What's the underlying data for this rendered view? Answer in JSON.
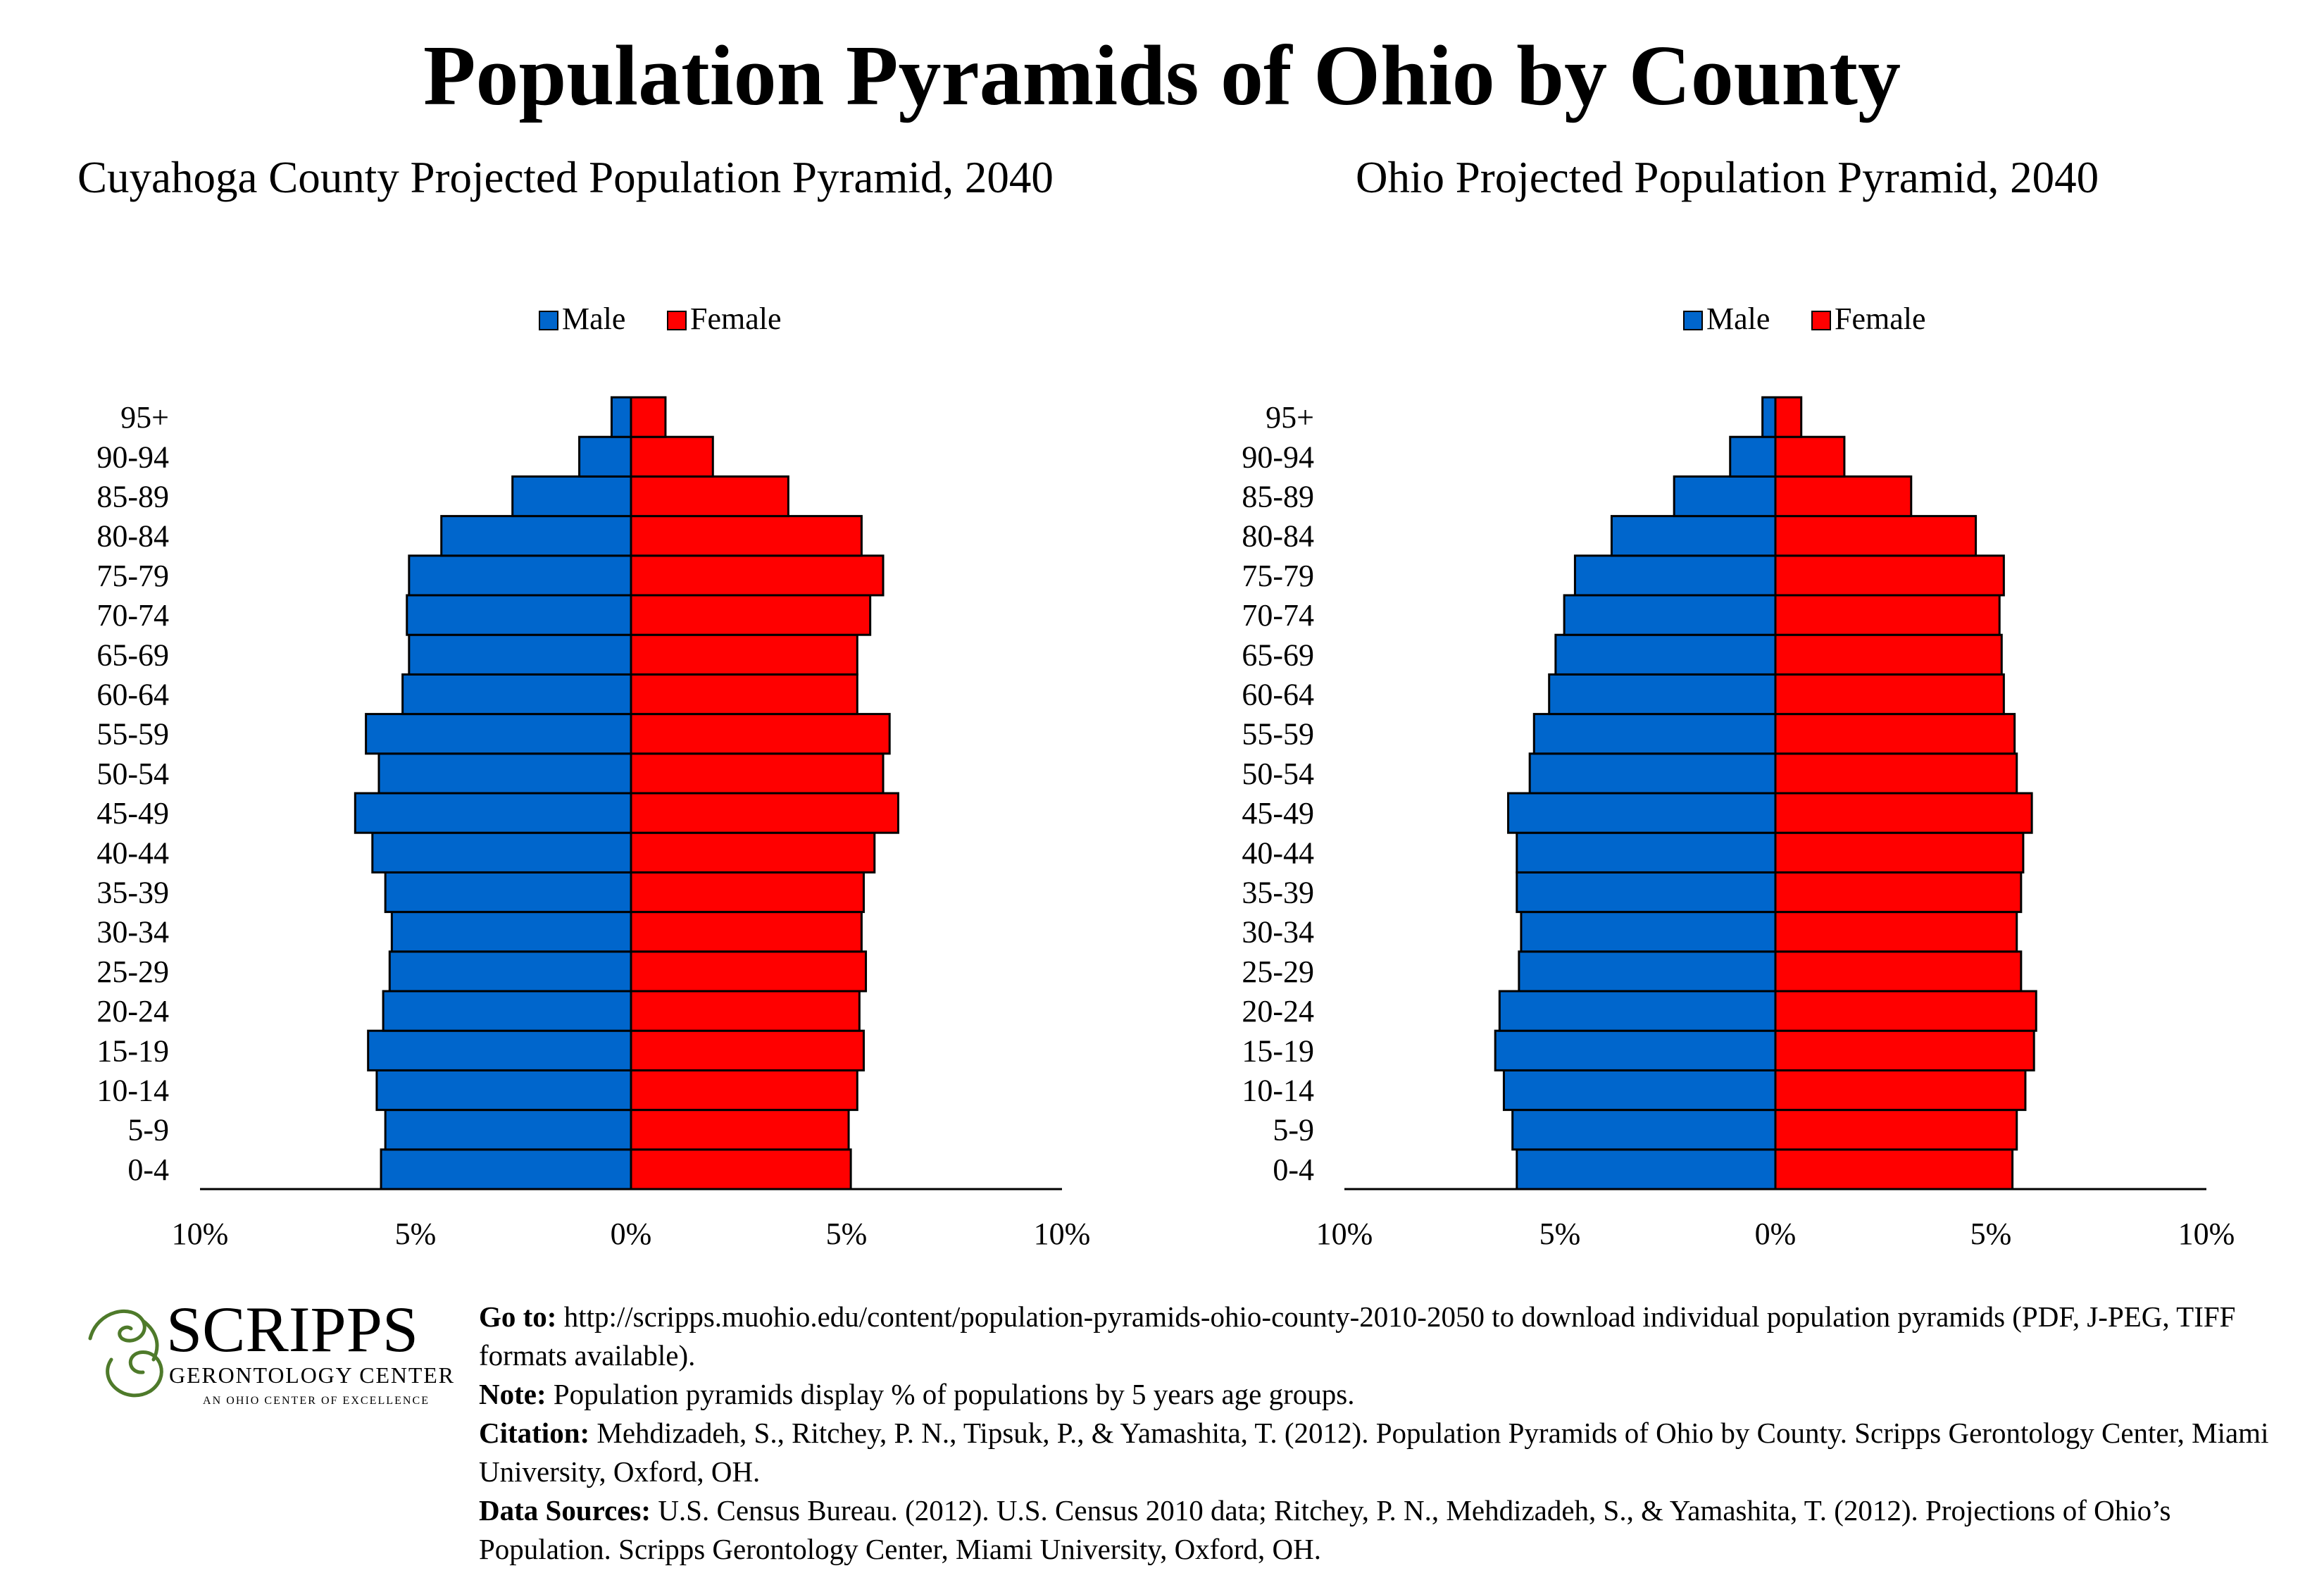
{
  "title": "Population Pyramids of Ohio by County",
  "chart_data": [
    {
      "type": "bar",
      "orientation": "horizontal-pyramid",
      "title": "Cuyahoga County Projected Population Pyramid, 2040",
      "categories": [
        "0-4",
        "5-9",
        "10-14",
        "15-19",
        "20-24",
        "25-29",
        "30-34",
        "35-39",
        "40-44",
        "45-49",
        "50-54",
        "55-59",
        "60-64",
        "65-69",
        "70-74",
        "75-79",
        "80-84",
        "85-89",
        "90-94",
        "95+"
      ],
      "series": [
        {
          "name": "Male",
          "color": "#0066CC",
          "values": [
            5.8,
            5.7,
            5.9,
            6.1,
            5.75,
            5.6,
            5.55,
            5.7,
            6.0,
            6.4,
            5.85,
            6.15,
            5.3,
            5.15,
            5.2,
            5.15,
            4.4,
            2.75,
            1.2,
            0.45
          ]
        },
        {
          "name": "Female",
          "color": "#FF0000",
          "values": [
            5.1,
            5.05,
            5.25,
            5.4,
            5.3,
            5.45,
            5.35,
            5.4,
            5.65,
            6.2,
            5.85,
            6.0,
            5.25,
            5.25,
            5.55,
            5.85,
            5.35,
            3.65,
            1.9,
            0.8
          ]
        }
      ],
      "xlim": [
        -10,
        10
      ],
      "xticks": [
        "10%",
        "5%",
        "0%",
        "5%",
        "10%"
      ],
      "legend": "top-center"
    },
    {
      "type": "bar",
      "orientation": "horizontal-pyramid",
      "title": "Ohio Projected Population Pyramid, 2040",
      "categories": [
        "0-4",
        "5-9",
        "10-14",
        "15-19",
        "20-24",
        "25-29",
        "30-34",
        "35-39",
        "40-44",
        "45-49",
        "50-54",
        "55-59",
        "60-64",
        "65-69",
        "70-74",
        "75-79",
        "80-84",
        "85-89",
        "90-94",
        "95+"
      ],
      "series": [
        {
          "name": "Male",
          "color": "#0066CC",
          "values": [
            6.0,
            6.1,
            6.3,
            6.5,
            6.4,
            5.95,
            5.9,
            6.0,
            6.0,
            6.2,
            5.7,
            5.6,
            5.25,
            5.1,
            4.9,
            4.65,
            3.8,
            2.35,
            1.05,
            0.3
          ]
        },
        {
          "name": "Female",
          "color": "#FF0000",
          "values": [
            5.5,
            5.6,
            5.8,
            6.0,
            6.05,
            5.7,
            5.6,
            5.7,
            5.75,
            5.95,
            5.6,
            5.55,
            5.3,
            5.25,
            5.2,
            5.3,
            4.65,
            3.15,
            1.6,
            0.6
          ]
        }
      ],
      "xlim": [
        -10,
        10
      ],
      "xticks": [
        "10%",
        "5%",
        "0%",
        "5%",
        "10%"
      ],
      "legend": "top-center"
    }
  ],
  "footer": {
    "logo": {
      "brand": "SCRIPPS",
      "line1": "GERONTOLOGY CENTER",
      "line2": "AN OHIO CENTER OF EXCELLENCE",
      "brand_color": "#B5312C",
      "accent_color": "#4E7A2A"
    },
    "goto_label": "Go to:",
    "goto_text": " http://scripps.muohio.edu/content/population-pyramids-ohio-county-2010-2050 to download individual population pyramids (PDF, J-PEG, TIFF formats available).",
    "note_label": "Note:",
    "note_text": " Population pyramids display % of populations by 5 years age groups.",
    "citation_label": "Citation:",
    "citation_text": " Mehdizadeh, S., Ritchey, P. N., Tipsuk, P., & Yamashita, T. (2012). Population Pyramids of Ohio by County. Scripps Gerontology Center, Miami University, Oxford, OH.",
    "sources_label": "Data Sources:",
    "sources_text": " U.S. Census Bureau. (2012). U.S. Census 2010 data; Ritchey, P. N., Mehdizadeh, S., & Yamashita, T. (2012). Projections of Ohio’s Population. Scripps Gerontology Center, Miami University, Oxford, OH."
  }
}
